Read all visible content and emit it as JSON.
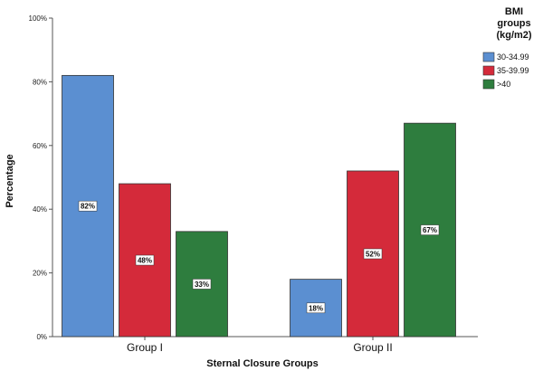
{
  "chart_data": {
    "type": "bar",
    "title": "",
    "xlabel": "Sternal Closure Groups",
    "ylabel": "Percentage",
    "categories": [
      "Group I",
      "Group II"
    ],
    "ylim": [
      0,
      100
    ],
    "yticks": [
      0,
      20,
      40,
      60,
      80,
      100
    ],
    "ytick_labels": [
      "0%",
      "20%",
      "40%",
      "60%",
      "80%",
      "100%"
    ],
    "grid": false,
    "legend": {
      "title": [
        "BMI",
        "groups",
        "(kg/m2)"
      ],
      "placement": "top-right"
    },
    "series": [
      {
        "name": "30-34.99",
        "color": "#5b8fd1",
        "values": [
          82,
          18
        ],
        "labels": [
          "82%",
          "18%"
        ]
      },
      {
        "name": "35-39.99",
        "color": "#d42a3a",
        "values": [
          48,
          52
        ],
        "labels": [
          "48%",
          "52%"
        ]
      },
      {
        "name": ">40",
        "color": "#2e7d3e",
        "values": [
          33,
          67
        ],
        "labels": [
          "33%",
          "67%"
        ]
      }
    ]
  }
}
